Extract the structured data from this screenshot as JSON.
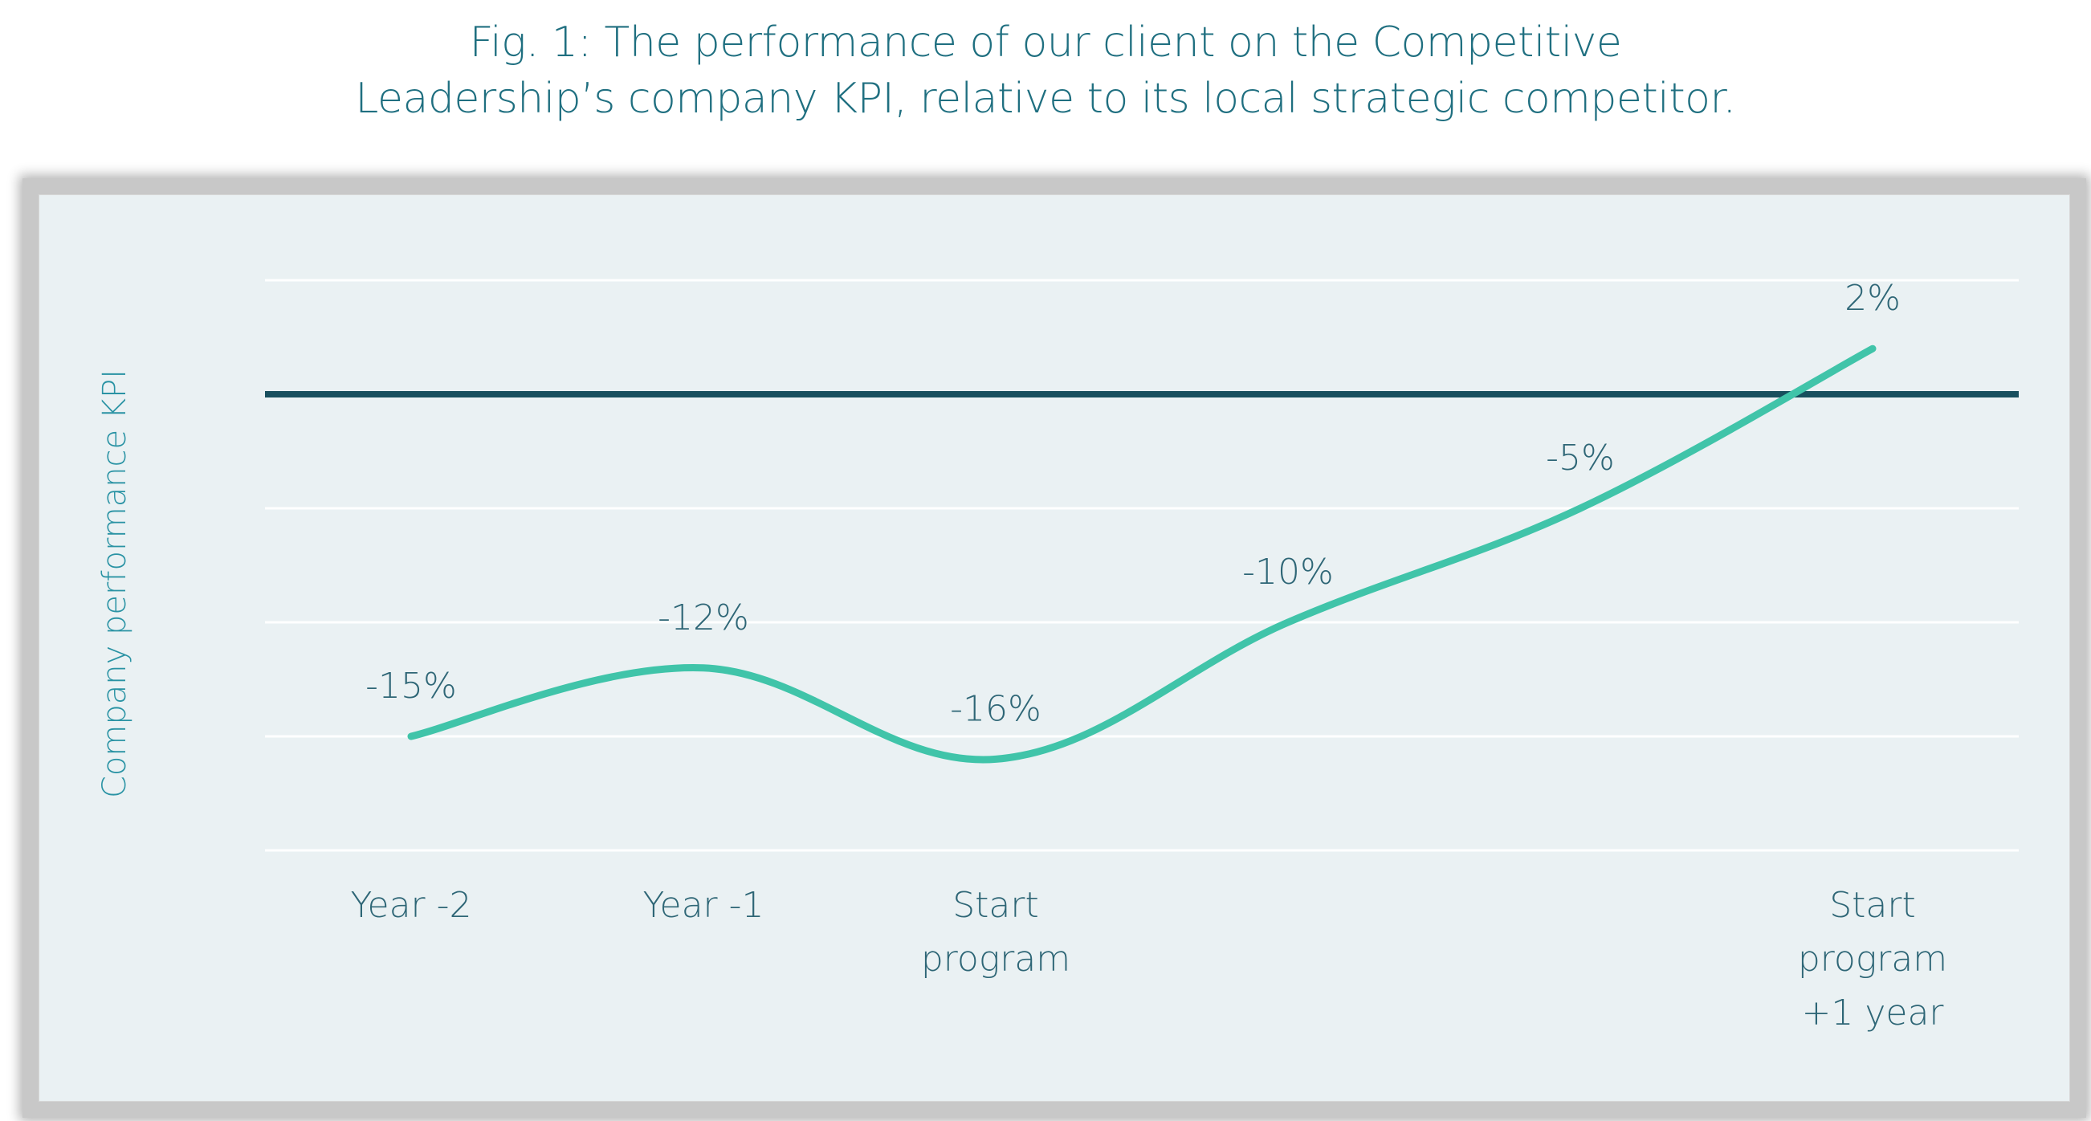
{
  "title_lines": [
    "Fig. 1: The performance of our client on the Competitive",
    "Leadership’s company KPI, relative to its local strategic competitor."
  ],
  "colors": {
    "series": "#40c4a9",
    "reference_line": "#184f5e",
    "gridline": "#ffffff",
    "panel_background": "#eaf1f3",
    "text": "#2e6676",
    "axis_label": "#2a93a4"
  },
  "chart_data": {
    "type": "line",
    "title": "Fig. 1: The performance of our client on the Competitive Leadership’s company KPI, relative to its local strategic competitor.",
    "xlabel": "",
    "ylabel": "Company performance KPI",
    "x_ticks": [
      {
        "label_lines": [
          "Year -2"
        ],
        "x": 0
      },
      {
        "label_lines": [
          "Year -1"
        ],
        "x": 1
      },
      {
        "label_lines": [
          "Start",
          "program"
        ],
        "x": 2
      },
      {
        "label_lines": [
          "Start",
          "program",
          "+1 year"
        ],
        "x": 5
      }
    ],
    "series": [
      {
        "x": [
          0,
          1,
          2,
          3,
          4,
          5
        ],
        "values": [
          -15,
          -12,
          -16,
          -10,
          -5,
          2
        ],
        "data_labels": [
          "-15%",
          "-12%",
          "-16%",
          "-10%",
          "-5%",
          "2%"
        ]
      }
    ],
    "reference_line": 0,
    "ylim": [
      -20,
      5
    ],
    "xlim": [
      -0.5,
      5.5
    ],
    "grid": true,
    "gridline_values": [
      5,
      0,
      -5,
      -10,
      -15,
      -20
    ],
    "smooth": true
  }
}
